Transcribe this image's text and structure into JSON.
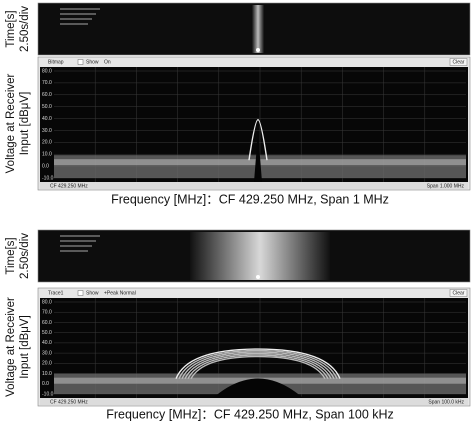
{
  "panels": [
    {
      "time_label": "Time[s]",
      "time_div": "2.50s/div",
      "y_label_line1": "Voltage at Receiver",
      "y_label_line2": "Input [dBμV]",
      "toolbar": {
        "trace": "Bitmap",
        "show": "Show",
        "mode": "On",
        "clear": "Clear"
      },
      "y_ticks": [
        "80.0",
        "70.0",
        "60.0",
        "50.0",
        "40.0",
        "30.0",
        "20.0",
        "10.0",
        "0.0",
        "-10.0"
      ],
      "center_freq": "CF 429.250 MHz",
      "span": "Span 1.000 MHz",
      "caption": "Frequency [MHz]：CF 429.250 MHz, Span 1 MHz"
    },
    {
      "time_label": "Time[s]",
      "time_div": "2.50s/div",
      "y_label_line1": "Voltage at Receiver",
      "y_label_line2": "Input [dBμV]",
      "toolbar": {
        "trace": "Trace1",
        "show": "Show",
        "mode": "+Peak Normal",
        "clear": "Clear"
      },
      "y_ticks": [
        "80.0",
        "70.0",
        "60.0",
        "50.0",
        "40.0",
        "30.0",
        "20.0",
        "10.0",
        "0.0",
        "-10.0"
      ],
      "center_freq": "CF 429.250 MHz",
      "span": "Span 100.0 kHz",
      "caption": "Frequency [MHz]：CF 429.250 MHz, Span 100 kHz"
    }
  ]
}
